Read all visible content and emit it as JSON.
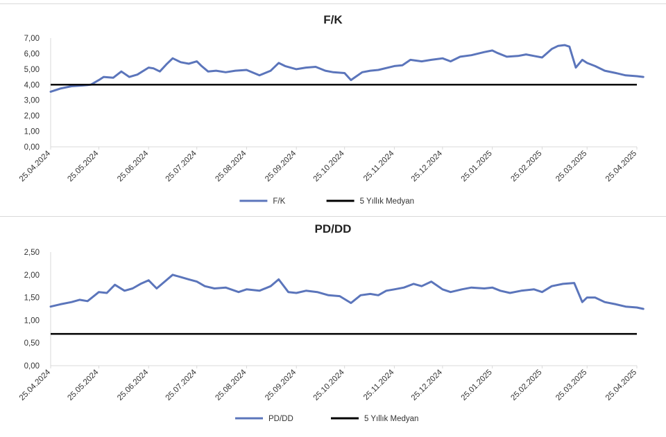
{
  "colors": {
    "series": "#5b75bb",
    "median": "#000000",
    "axis": "#d9d9d9",
    "text": "#333333"
  },
  "chart_data": [
    {
      "type": "line",
      "title": "F/K",
      "xlabel": "",
      "ylabel": "",
      "ylim": [
        0,
        7
      ],
      "yticks": [
        "0,00",
        "1,00",
        "2,00",
        "3,00",
        "4,00",
        "5,00",
        "6,00",
        "7,00"
      ],
      "xticks": [
        "25.04.2024",
        "25.05.2024",
        "25.06.2024",
        "25.07.2024",
        "25.08.2024",
        "25.09.2024",
        "25.10.2024",
        "25.11.2024",
        "25.12.2024",
        "25.01.2025",
        "25.02.2025",
        "25.03.2025",
        "25.04.2025"
      ],
      "legend_position": "bottom",
      "series": [
        {
          "name": "F/K",
          "x": [
            "25.04.2024",
            "01.05.2024",
            "08.05.2024",
            "15.05.2024",
            "20.05.2024",
            "25.05.2024",
            "28.05.2024",
            "03.06.2024",
            "08.06.2024",
            "13.06.2024",
            "18.06.2024",
            "25.06.2024",
            "28.06.2024",
            "02.07.2024",
            "06.07.2024",
            "10.07.2024",
            "15.07.2024",
            "20.07.2024",
            "25.07.2024",
            "28.07.2024",
            "01.08.2024",
            "06.08.2024",
            "12.08.2024",
            "18.08.2024",
            "25.08.2024",
            "02.09.2024",
            "09.09.2024",
            "14.09.2024",
            "18.09.2024",
            "25.09.2024",
            "01.10.2024",
            "07.10.2024",
            "13.10.2024",
            "18.10.2024",
            "25.10.2024",
            "29.10.2024",
            "05.11.2024",
            "10.11.2024",
            "15.11.2024",
            "25.11.2024",
            "30.11.2024",
            "05.12.2024",
            "12.12.2024",
            "18.12.2024",
            "25.12.2024",
            "30.12.2024",
            "05.01.2025",
            "12.01.2025",
            "20.01.2025",
            "25.01.2025",
            "28.01.2025",
            "03.02.2025",
            "10.02.2025",
            "15.02.2025",
            "20.02.2025",
            "25.02.2025",
            "03.03.2025",
            "07.03.2025",
            "11.03.2025",
            "14.03.2025",
            "18.03.2025",
            "22.03.2025",
            "25.03.2025",
            "30.03.2025",
            "05.04.2025",
            "12.04.2025",
            "18.04.2025",
            "25.04.2025",
            "29.04.2025"
          ],
          "values": [
            3.55,
            3.75,
            3.9,
            3.95,
            4.0,
            4.3,
            4.5,
            4.45,
            4.85,
            4.5,
            4.65,
            5.1,
            5.05,
            4.85,
            5.3,
            5.7,
            5.45,
            5.35,
            5.5,
            5.2,
            4.85,
            4.9,
            4.8,
            4.9,
            4.95,
            4.6,
            4.9,
            5.4,
            5.2,
            5.0,
            5.1,
            5.15,
            4.9,
            4.8,
            4.75,
            4.3,
            4.8,
            4.9,
            4.95,
            5.2,
            5.25,
            5.6,
            5.5,
            5.6,
            5.7,
            5.5,
            5.8,
            5.9,
            6.1,
            6.2,
            6.05,
            5.8,
            5.85,
            5.95,
            5.85,
            5.75,
            6.3,
            6.5,
            6.55,
            6.45,
            5.1,
            5.6,
            5.4,
            5.2,
            4.9,
            4.75,
            4.6,
            4.55,
            4.5
          ]
        },
        {
          "name": "5 Yıllık Medyan",
          "constant": 4.0
        }
      ]
    },
    {
      "type": "line",
      "title": "PD/DD",
      "xlabel": "",
      "ylabel": "",
      "ylim": [
        0,
        2.5
      ],
      "yticks": [
        "0,00",
        "0,50",
        "1,00",
        "1,50",
        "2,00",
        "2,50"
      ],
      "xticks": [
        "25.04.2024",
        "25.05.2024",
        "25.06.2024",
        "25.07.2024",
        "25.08.2024",
        "25.09.2024",
        "25.10.2024",
        "25.11.2024",
        "25.12.2024",
        "25.01.2025",
        "25.02.2025",
        "25.03.2025",
        "25.04.2025"
      ],
      "legend_position": "bottom",
      "series": [
        {
          "name": "PD/DD",
          "x": [
            "25.04.2024",
            "01.05.2024",
            "08.05.2024",
            "13.05.2024",
            "18.05.2024",
            "25.05.2024",
            "30.05.2024",
            "04.06.2024",
            "10.06.2024",
            "15.06.2024",
            "20.06.2024",
            "25.06.2024",
            "30.06.2024",
            "05.07.2024",
            "10.07.2024",
            "15.07.2024",
            "20.07.2024",
            "25.07.2024",
            "30.07.2024",
            "05.08.2024",
            "12.08.2024",
            "20.08.2024",
            "25.08.2024",
            "02.09.2024",
            "09.09.2024",
            "14.09.2024",
            "20.09.2024",
            "25.09.2024",
            "01.10.2024",
            "08.10.2024",
            "15.10.2024",
            "22.10.2024",
            "29.10.2024",
            "04.11.2024",
            "10.11.2024",
            "15.11.2024",
            "20.11.2024",
            "25.11.2024",
            "01.12.2024",
            "07.12.2024",
            "12.12.2024",
            "18.12.2024",
            "25.12.2024",
            "30.12.2024",
            "06.01.2025",
            "12.01.2025",
            "20.01.2025",
            "25.01.2025",
            "30.01.2025",
            "05.02.2025",
            "12.02.2025",
            "20.02.2025",
            "25.02.2025",
            "03.03.2025",
            "10.03.2025",
            "17.03.2025",
            "22.03.2025",
            "25.03.2025",
            "30.03.2025",
            "05.04.2025",
            "12.04.2025",
            "18.04.2025",
            "25.04.2025",
            "29.04.2025"
          ],
          "values": [
            1.3,
            1.35,
            1.4,
            1.45,
            1.42,
            1.62,
            1.6,
            1.78,
            1.65,
            1.7,
            1.8,
            1.88,
            1.7,
            1.85,
            2.0,
            1.95,
            1.9,
            1.85,
            1.75,
            1.7,
            1.72,
            1.62,
            1.68,
            1.65,
            1.75,
            1.9,
            1.62,
            1.6,
            1.65,
            1.62,
            1.55,
            1.53,
            1.38,
            1.55,
            1.58,
            1.55,
            1.65,
            1.68,
            1.72,
            1.8,
            1.75,
            1.85,
            1.68,
            1.62,
            1.68,
            1.72,
            1.7,
            1.72,
            1.65,
            1.6,
            1.65,
            1.68,
            1.62,
            1.75,
            1.8,
            1.82,
            1.4,
            1.5,
            1.5,
            1.4,
            1.35,
            1.3,
            1.28,
            1.25
          ]
        },
        {
          "name": "5 Yıllık Medyan",
          "constant": 0.7
        }
      ]
    }
  ]
}
